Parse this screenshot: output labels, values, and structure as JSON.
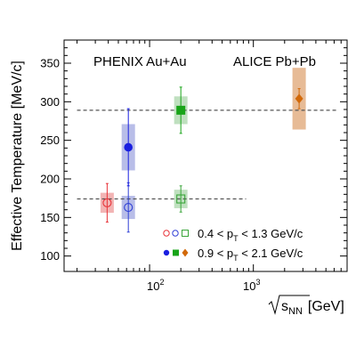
{
  "chart_data": {
    "type": "scatter",
    "ylabel": "Effective Temperature [MeV/c]",
    "xlabel_parts": {
      "sqrt_arg": "s",
      "sqrt_sub": "NN",
      "unit": "[GeV]"
    },
    "experiment_labels": [
      "PHENIX Au+Au",
      "ALICE Pb+Pb"
    ],
    "x_scale": "log",
    "xlim": [
      15,
      8000
    ],
    "ylim": [
      80,
      380
    ],
    "y_ticks": [
      100,
      150,
      200,
      250,
      300,
      350
    ],
    "x_tick_labels": [
      {
        "x": 100,
        "base": "10",
        "exp": "2"
      },
      {
        "x": 1000,
        "base": "10",
        "exp": "3"
      }
    ],
    "grid": false,
    "reference_lines": [
      {
        "y": 174,
        "x_start": 20,
        "x_end": 850,
        "style": "dashed"
      },
      {
        "y": 289,
        "x_start": 20,
        "x_end": 6500,
        "style": "dashed"
      }
    ],
    "legend": {
      "placement": "bottom-right",
      "entries": [
        {
          "symbols": "open",
          "range_low": "0.4",
          "range_high": "1.3",
          "unit": "GeV/c"
        },
        {
          "symbols": "filled",
          "range_low": "0.9",
          "range_high": "2.1",
          "unit": "GeV/c"
        }
      ],
      "pt_symbol": "p",
      "pt_sub": "T"
    },
    "series": [
      {
        "pt_bin": "0.4-1.3",
        "points": [
          {
            "x": 39,
            "y": 169,
            "stat_err": 25,
            "sys_err": 13,
            "marker": "circle-open",
            "color": "#e8343a",
            "band": "#f2b4b4"
          },
          {
            "x": 62.4,
            "y": 163,
            "stat_err": 32,
            "sys_err": 15,
            "marker": "circle-open",
            "color": "#2f3fd6",
            "band": "#b8bde8"
          },
          {
            "x": 200,
            "y": 174,
            "stat_err": 17,
            "sys_err": 12,
            "marker": "square-open",
            "color": "#3aa53a",
            "band": "#bfe0bf"
          }
        ]
      },
      {
        "pt_bin": "0.9-2.1",
        "points": [
          {
            "x": 62.4,
            "y": 241,
            "stat_err": 50,
            "sys_err": 30,
            "marker": "circle-filled",
            "color": "#1a1fe0",
            "band": "#b8bde8"
          },
          {
            "x": 200,
            "y": 289,
            "stat_err": 30,
            "sys_err": 18,
            "marker": "square-filled",
            "color": "#18a418",
            "band": "#bfe0bf"
          },
          {
            "x": 2760,
            "y": 304,
            "stat_err": 13,
            "sys_err": 40,
            "marker": "diamond-filled",
            "color": "#d2690a",
            "band": "#e7bb96"
          }
        ]
      }
    ]
  }
}
